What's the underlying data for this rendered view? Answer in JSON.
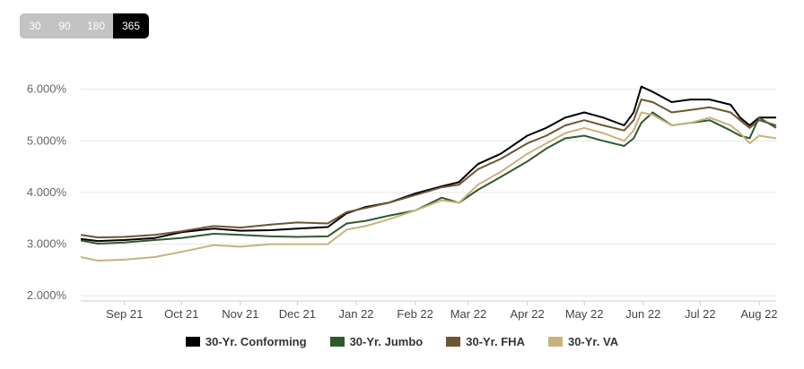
{
  "range_buttons": [
    {
      "label": "30",
      "active": false
    },
    {
      "label": "90",
      "active": false
    },
    {
      "label": "180",
      "active": false
    },
    {
      "label": "365",
      "active": true
    }
  ],
  "chart_data": {
    "type": "line",
    "ylim": [
      1.9,
      6.6
    ],
    "yticks": [
      {
        "value": 2.0,
        "label": "2.000%"
      },
      {
        "value": 3.0,
        "label": "3.000%"
      },
      {
        "value": 4.0,
        "label": "4.000%"
      },
      {
        "value": 5.0,
        "label": "5.000%"
      },
      {
        "value": 6.0,
        "label": "6.000%"
      }
    ],
    "xlim": [
      "2021-08-23",
      "2022-08-24"
    ],
    "xticks": [
      {
        "date": "2021-09-15",
        "label": "Sep 21"
      },
      {
        "date": "2021-10-15",
        "label": "Oct 21"
      },
      {
        "date": "2021-11-15",
        "label": "Nov 21"
      },
      {
        "date": "2021-12-15",
        "label": "Dec 21"
      },
      {
        "date": "2022-01-15",
        "label": "Jan 22"
      },
      {
        "date": "2022-02-15",
        "label": "Feb 22"
      },
      {
        "date": "2022-03-15",
        "label": "Mar 22"
      },
      {
        "date": "2022-04-15",
        "label": "Apr 22"
      },
      {
        "date": "2022-05-15",
        "label": "May 22"
      },
      {
        "date": "2022-06-15",
        "label": "Jun 22"
      },
      {
        "date": "2022-07-15",
        "label": "Jul 22"
      },
      {
        "date": "2022-08-15",
        "label": "Aug 22"
      }
    ],
    "grid": "horizontal",
    "legend_position": "bottom",
    "series": [
      {
        "name": "30-Yr. Conforming",
        "color": "#000000",
        "points": [
          [
            "2021-08-23",
            3.1
          ],
          [
            "2021-09-01",
            3.06
          ],
          [
            "2021-09-15",
            3.08
          ],
          [
            "2021-10-01",
            3.12
          ],
          [
            "2021-10-15",
            3.23
          ],
          [
            "2021-11-01",
            3.3
          ],
          [
            "2021-11-15",
            3.26
          ],
          [
            "2021-12-01",
            3.27
          ],
          [
            "2021-12-15",
            3.3
          ],
          [
            "2021-12-31",
            3.33
          ],
          [
            "2022-01-10",
            3.6
          ],
          [
            "2022-01-20",
            3.72
          ],
          [
            "2022-02-01",
            3.8
          ],
          [
            "2022-02-15",
            3.98
          ],
          [
            "2022-03-01",
            4.12
          ],
          [
            "2022-03-10",
            4.2
          ],
          [
            "2022-03-20",
            4.55
          ],
          [
            "2022-04-01",
            4.75
          ],
          [
            "2022-04-15",
            5.1
          ],
          [
            "2022-04-25",
            5.25
          ],
          [
            "2022-05-05",
            5.45
          ],
          [
            "2022-05-15",
            5.55
          ],
          [
            "2022-05-25",
            5.45
          ],
          [
            "2022-06-05",
            5.3
          ],
          [
            "2022-06-10",
            5.55
          ],
          [
            "2022-06-14",
            6.05
          ],
          [
            "2022-06-20",
            5.95
          ],
          [
            "2022-06-30",
            5.75
          ],
          [
            "2022-07-10",
            5.8
          ],
          [
            "2022-07-20",
            5.8
          ],
          [
            "2022-07-31",
            5.7
          ],
          [
            "2022-08-05",
            5.45
          ],
          [
            "2022-08-10",
            5.3
          ],
          [
            "2022-08-15",
            5.45
          ],
          [
            "2022-08-24",
            5.45
          ]
        ]
      },
      {
        "name": "30-Yr. Jumbo",
        "color": "#2f5a2d",
        "points": [
          [
            "2021-08-23",
            3.07
          ],
          [
            "2021-09-01",
            3.01
          ],
          [
            "2021-09-15",
            3.03
          ],
          [
            "2021-10-01",
            3.08
          ],
          [
            "2021-10-15",
            3.12
          ],
          [
            "2021-11-01",
            3.2
          ],
          [
            "2021-11-15",
            3.18
          ],
          [
            "2021-12-01",
            3.15
          ],
          [
            "2021-12-15",
            3.14
          ],
          [
            "2021-12-31",
            3.15
          ],
          [
            "2022-01-10",
            3.4
          ],
          [
            "2022-01-20",
            3.45
          ],
          [
            "2022-02-01",
            3.55
          ],
          [
            "2022-02-15",
            3.65
          ],
          [
            "2022-03-01",
            3.9
          ],
          [
            "2022-03-10",
            3.8
          ],
          [
            "2022-03-20",
            4.05
          ],
          [
            "2022-04-01",
            4.3
          ],
          [
            "2022-04-15",
            4.6
          ],
          [
            "2022-04-25",
            4.85
          ],
          [
            "2022-05-05",
            5.05
          ],
          [
            "2022-05-15",
            5.1
          ],
          [
            "2022-05-25",
            5.0
          ],
          [
            "2022-06-05",
            4.9
          ],
          [
            "2022-06-10",
            5.05
          ],
          [
            "2022-06-14",
            5.35
          ],
          [
            "2022-06-20",
            5.55
          ],
          [
            "2022-06-30",
            5.3
          ],
          [
            "2022-07-10",
            5.35
          ],
          [
            "2022-07-20",
            5.4
          ],
          [
            "2022-07-31",
            5.2
          ],
          [
            "2022-08-05",
            5.1
          ],
          [
            "2022-08-10",
            5.05
          ],
          [
            "2022-08-15",
            5.45
          ],
          [
            "2022-08-24",
            5.25
          ]
        ]
      },
      {
        "name": "30-Yr. FHA",
        "color": "#6b5732",
        "points": [
          [
            "2021-08-23",
            3.18
          ],
          [
            "2021-09-01",
            3.13
          ],
          [
            "2021-09-15",
            3.14
          ],
          [
            "2021-10-01",
            3.18
          ],
          [
            "2021-10-15",
            3.25
          ],
          [
            "2021-11-01",
            3.35
          ],
          [
            "2021-11-15",
            3.32
          ],
          [
            "2021-12-01",
            3.38
          ],
          [
            "2021-12-15",
            3.42
          ],
          [
            "2021-12-31",
            3.4
          ],
          [
            "2022-01-10",
            3.62
          ],
          [
            "2022-01-20",
            3.7
          ],
          [
            "2022-02-01",
            3.8
          ],
          [
            "2022-02-15",
            3.95
          ],
          [
            "2022-03-01",
            4.1
          ],
          [
            "2022-03-10",
            4.15
          ],
          [
            "2022-03-20",
            4.45
          ],
          [
            "2022-04-01",
            4.65
          ],
          [
            "2022-04-15",
            4.95
          ],
          [
            "2022-04-25",
            5.1
          ],
          [
            "2022-05-05",
            5.3
          ],
          [
            "2022-05-15",
            5.4
          ],
          [
            "2022-05-25",
            5.3
          ],
          [
            "2022-06-05",
            5.2
          ],
          [
            "2022-06-10",
            5.4
          ],
          [
            "2022-06-14",
            5.8
          ],
          [
            "2022-06-20",
            5.75
          ],
          [
            "2022-06-30",
            5.55
          ],
          [
            "2022-07-10",
            5.6
          ],
          [
            "2022-07-20",
            5.65
          ],
          [
            "2022-07-31",
            5.55
          ],
          [
            "2022-08-05",
            5.4
          ],
          [
            "2022-08-10",
            5.25
          ],
          [
            "2022-08-15",
            5.4
          ],
          [
            "2022-08-24",
            5.3
          ]
        ]
      },
      {
        "name": "30-Yr. VA",
        "color": "#c8b27c",
        "points": [
          [
            "2021-08-23",
            2.75
          ],
          [
            "2021-09-01",
            2.68
          ],
          [
            "2021-09-15",
            2.7
          ],
          [
            "2021-10-01",
            2.75
          ],
          [
            "2021-10-15",
            2.85
          ],
          [
            "2021-11-01",
            2.98
          ],
          [
            "2021-11-15",
            2.95
          ],
          [
            "2021-12-01",
            3.0
          ],
          [
            "2021-12-15",
            3.0
          ],
          [
            "2021-12-31",
            3.0
          ],
          [
            "2022-01-10",
            3.28
          ],
          [
            "2022-01-20",
            3.35
          ],
          [
            "2022-02-01",
            3.48
          ],
          [
            "2022-02-15",
            3.65
          ],
          [
            "2022-03-01",
            3.85
          ],
          [
            "2022-03-10",
            3.8
          ],
          [
            "2022-03-20",
            4.15
          ],
          [
            "2022-04-01",
            4.4
          ],
          [
            "2022-04-15",
            4.75
          ],
          [
            "2022-04-25",
            4.95
          ],
          [
            "2022-05-05",
            5.15
          ],
          [
            "2022-05-15",
            5.25
          ],
          [
            "2022-05-25",
            5.15
          ],
          [
            "2022-06-05",
            5.0
          ],
          [
            "2022-06-10",
            5.2
          ],
          [
            "2022-06-14",
            5.55
          ],
          [
            "2022-06-20",
            5.5
          ],
          [
            "2022-06-30",
            5.3
          ],
          [
            "2022-07-10",
            5.35
          ],
          [
            "2022-07-20",
            5.45
          ],
          [
            "2022-07-31",
            5.3
          ],
          [
            "2022-08-05",
            5.15
          ],
          [
            "2022-08-10",
            4.95
          ],
          [
            "2022-08-15",
            5.1
          ],
          [
            "2022-08-24",
            5.05
          ]
        ]
      }
    ]
  }
}
